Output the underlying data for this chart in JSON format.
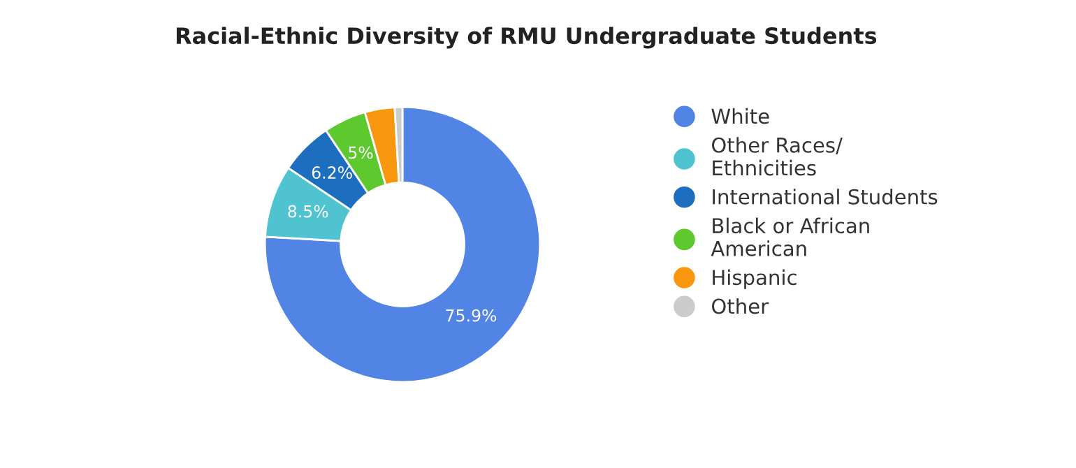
{
  "chart_data": {
    "type": "donut",
    "title": "Racial-Ethnic Diversity of RMU Undergraduate Students",
    "categories": [
      "White",
      "Other Races/\nEthnicities",
      "International Students",
      "Black or African\nAmerican",
      "Hispanic",
      "Other"
    ],
    "values": [
      75.9,
      8.5,
      6.2,
      5,
      3.5,
      0.9
    ],
    "value_labels": [
      "75.9%",
      "8.5%",
      "6.2%",
      "5%",
      null,
      null
    ],
    "colors": [
      "#5184e4",
      "#4fc3cf",
      "#1d6ebf",
      "#5dc92e",
      "#f8970e",
      "#cccccc"
    ],
    "legend": "right"
  }
}
